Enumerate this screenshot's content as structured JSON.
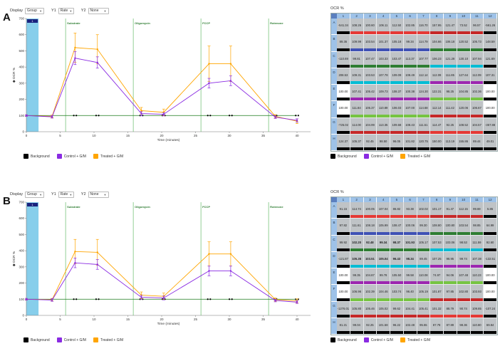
{
  "colors": {
    "background": "#000000",
    "control": "#8a2be2",
    "treated": "#ffa500",
    "baseline_band": "#87ceeb",
    "injection_line": "#4caf50",
    "injection_text": "#2e7d32",
    "zero_line": "#1a7a1a",
    "well_gray": "#bfc3c6",
    "well_white": "#ffffff",
    "group_palette": [
      "#000000",
      "#e53935",
      "#3f51b5",
      "#2e7d32",
      "#00bcd4",
      "#9c27b0",
      "#76c442",
      "#c62828"
    ]
  },
  "panels": [
    {
      "label": "A",
      "toolbar": {
        "display_label": "Display",
        "display_value": "Group",
        "y1_label": "Y1",
        "y1_value": "Rate",
        "y2_label": "Y2",
        "y2_value": "None"
      },
      "chart_data": {
        "type": "line",
        "xlabel": "Time (minutes)",
        "ylabel": "OCR %",
        "xlim": [
          0,
          42
        ],
        "ylim": [
          0,
          700
        ],
        "xticks": [
          0,
          5,
          10,
          15,
          20,
          25,
          30,
          35,
          40
        ],
        "yticks": [
          0,
          100,
          200,
          300,
          400,
          500,
          600,
          700
        ],
        "baseline_band": {
          "x_start": 0,
          "x_end": 1.8,
          "label": "1"
        },
        "injections": [
          {
            "label": "Substrate",
            "x": 5.8
          },
          {
            "label": "Oligomycin",
            "x": 15.8
          },
          {
            "label": "FCCP",
            "x": 25.8
          },
          {
            "label": "Rotenone",
            "x": 35.8
          }
        ],
        "x": [
          0,
          3.8,
          7.2,
          10.5,
          17.0,
          20.3,
          27.0,
          30.2,
          36.8,
          40.0
        ],
        "background_points": [
          7.2,
          10.5,
          17.0,
          20.3,
          27.0,
          30.2,
          36.8,
          40.0
        ],
        "series": [
          {
            "name": "Background",
            "values": [
              100,
              100,
              100,
              100,
              100,
              100,
              100,
              100,
              100,
              100
            ],
            "errors": [
              0,
              0,
              0,
              0,
              0,
              0,
              0,
              0,
              0,
              0
            ]
          },
          {
            "name": "Control + G/M",
            "values": [
              100,
              92,
              455,
              428,
              112,
              108,
              300,
              315,
              90,
              70
            ],
            "errors": [
              5,
              8,
              40,
              35,
              12,
              10,
              30,
              30,
              8,
              10
            ]
          },
          {
            "name": "Treated + G/M",
            "values": [
              100,
              95,
              520,
              510,
              130,
              120,
              420,
              420,
              95,
              65
            ],
            "errors": [
              5,
              8,
              90,
              90,
              20,
              20,
              110,
              110,
              10,
              15
            ]
          }
        ]
      },
      "plate": {
        "title": "OCR %",
        "columns": [
          "1",
          "2",
          "3",
          "4",
          "5",
          "6",
          "7",
          "8",
          "9",
          "10",
          "11",
          "12"
        ],
        "rows": [
          "A",
          "B",
          "C",
          "D",
          "E",
          "F",
          "G",
          "H"
        ],
        "values": [
          [
            "-541.34",
            "108.26",
            "100.60",
            "106.11",
            "112.50",
            "102.85",
            "116.70",
            "157.95",
            "121.47",
            "73.52",
            "96.57",
            "-561.26"
          ],
          [
            "89.36",
            "109.99",
            "103.54",
            "101.37",
            "105.18",
            "99.34",
            "114.79",
            "104.66",
            "106.18",
            "120.52",
            "105.73",
            "148.59"
          ],
          [
            "-110.69",
            "99.81",
            "107.47",
            "103.33",
            "103.47",
            "113.37",
            "107.77",
            "106.23",
            "121.28",
            "130.10",
            "107.94",
            "121.69"
          ],
          [
            "208.53",
            "109.31",
            "103.53",
            "107.78",
            "109.09",
            "108.49",
            "112.14",
            "112.09",
            "111.85",
            "127.64",
            "112.09",
            "107.31"
          ],
          [
            "100.00",
            "107.41",
            "105.42",
            "109.73",
            "108.37",
            "100.38",
            "124.30",
            "122.31",
            "98.25",
            "104.85",
            "102.36",
            "100.00"
          ],
          [
            "100.00",
            "111.84",
            "105.37",
            "110.89",
            "106.03",
            "107.00",
            "114.68",
            "112.14",
            "111.42",
            "120.06",
            "106.67",
            "100.00"
          ],
          [
            "-725.02",
            "114.00",
            "104.99",
            "113.35",
            "109.68",
            "108.43",
            "111.51",
            "114.47",
            "92.25",
            "108.52",
            "104.57",
            "-357.88"
          ],
          [
            "124.37",
            "105.37",
            "92.45",
            "98.50",
            "96.05",
            "101.82",
            "120.75",
            "150.00",
            "113.19",
            "155.86",
            "89.44",
            "49.01"
          ]
        ],
        "bold": [],
        "white": [
          [
            4,
            0
          ],
          [
            4,
            11
          ],
          [
            5,
            0
          ],
          [
            5,
            11
          ]
        ],
        "bar_groups": [
          [
            0,
            1,
            1,
            1,
            1,
            1,
            1,
            7,
            7,
            7,
            7,
            0
          ],
          [
            0,
            2,
            2,
            2,
            2,
            2,
            2,
            3,
            3,
            3,
            3,
            0
          ],
          [
            0,
            3,
            3,
            3,
            3,
            3,
            3,
            4,
            4,
            4,
            4,
            0
          ],
          [
            0,
            4,
            4,
            4,
            4,
            4,
            4,
            5,
            5,
            5,
            5,
            0
          ],
          [
            0,
            5,
            5,
            5,
            5,
            5,
            5,
            6,
            6,
            6,
            6,
            0
          ],
          [
            0,
            6,
            6,
            6,
            6,
            6,
            6,
            7,
            7,
            7,
            7,
            0
          ],
          [
            0,
            7,
            7,
            7,
            7,
            7,
            7,
            1,
            1,
            1,
            1,
            0
          ],
          [
            0,
            0,
            0,
            0,
            0,
            0,
            0,
            0,
            0,
            0,
            0,
            0
          ]
        ]
      },
      "legend": [
        {
          "name": "Background",
          "color": "#000000"
        },
        {
          "name": "Control + G/M",
          "color": "#8a2be2"
        },
        {
          "name": "Treated + G/M",
          "color": "#ffa500"
        }
      ]
    },
    {
      "label": "B",
      "toolbar": {
        "display_label": "Display",
        "display_value": "Group",
        "y1_label": "Y1",
        "y1_value": "Rate",
        "y2_label": "Y2",
        "y2_value": "None"
      },
      "chart_data": {
        "type": "line",
        "xlabel": "Time (minutes)",
        "ylabel": "OCR %",
        "xlim": [
          0,
          42
        ],
        "ylim": [
          0,
          700
        ],
        "xticks": [
          0,
          5,
          10,
          15,
          20,
          25,
          30,
          35,
          40
        ],
        "yticks": [
          0,
          100,
          200,
          300,
          400,
          500,
          600,
          700
        ],
        "baseline_band": {
          "x_start": 0,
          "x_end": 1.8,
          "label": "1"
        },
        "injections": [
          {
            "label": "Substrate",
            "x": 5.8
          },
          {
            "label": "Oligomycin",
            "x": 15.8
          },
          {
            "label": "FCCP",
            "x": 25.8
          },
          {
            "label": "Rotenone",
            "x": 35.8
          }
        ],
        "x": [
          0,
          3.8,
          7.2,
          10.5,
          17.0,
          20.3,
          27.0,
          30.2,
          36.8,
          40.0
        ],
        "background_points": [
          7.2,
          10.5,
          17.0,
          20.3,
          27.0,
          30.2,
          36.8,
          40.0
        ],
        "series": [
          {
            "name": "Background",
            "values": [
              100,
              100,
              100,
              100,
              100,
              100,
              100,
              100,
              100,
              100
            ],
            "errors": [
              0,
              0,
              0,
              0,
              0,
              0,
              0,
              0,
              0,
              0
            ]
          },
          {
            "name": "Control + G/M",
            "values": [
              100,
              95,
              325,
              315,
              112,
              108,
              275,
              275,
              92,
              82
            ],
            "errors": [
              5,
              8,
              30,
              30,
              12,
              12,
              30,
              30,
              8,
              8
            ]
          },
          {
            "name": "Treated + G/M",
            "values": [
              100,
              97,
              395,
              390,
              125,
              118,
              380,
              380,
              98,
              90
            ],
            "errors": [
              5,
              8,
              75,
              80,
              20,
              20,
              75,
              75,
              10,
              12
            ]
          }
        ]
      },
      "plate": {
        "title": "OCR %",
        "columns": [
          "1",
          "2",
          "3",
          "4",
          "5",
          "6",
          "7",
          "8",
          "9",
          "10",
          "11",
          "12"
        ],
        "rows": [
          "A",
          "B",
          "C",
          "D",
          "E",
          "F",
          "G",
          "H"
        ],
        "values": [
          [
            "91.15",
            "114.74",
            "100.05",
            "107.04",
            "86.82",
            "93.38",
            "102.02",
            "101.17",
            "91.47",
            "112.15",
            "99.69",
            "5.85"
          ],
          [
            "97.82",
            "111.61",
            "108.18",
            "105.99",
            "108.47",
            "100.06",
            "99.30",
            "108.80",
            "100.80",
            "103.54",
            "98.85",
            "64.99"
          ],
          [
            "99.92",
            "102.20",
            "92.48",
            "99.34",
            "98.37",
            "101.93",
            "105.17",
            "107.53",
            "103.06",
            "98.53",
            "111.59",
            "92.60"
          ],
          [
            "-121.87",
            "105.35",
            "103.51",
            "105.04",
            "96.43",
            "98.34",
            "89.45",
            "107.25",
            "98.95",
            "99.74",
            "107.38",
            "-132.51"
          ],
          [
            "100.00",
            "99.35",
            "104.87",
            "99.78",
            "105.50",
            "99.58",
            "110.08",
            "74.97",
            "94.06",
            "107.48",
            "110.23",
            "100.00"
          ],
          [
            "100.00",
            "106.96",
            "102.39",
            "104.46",
            "103.74",
            "96.40",
            "105.19",
            "101.87",
            "97.85",
            "102.80",
            "103.93",
            "100.00"
          ],
          [
            "-1276.01",
            "105.80",
            "105.46",
            "105.02",
            "99.62",
            "104.41",
            "105.41",
            "101.32",
            "88.79",
            "90.74",
            "109.85",
            "-107.24"
          ],
          [
            "81.21",
            "99.04",
            "92.25",
            "101.58",
            "96.22",
            "102.48",
            "95.55",
            "87.78",
            "87.89",
            "98.36",
            "110.80",
            "69.84"
          ]
        ],
        "bold": [
          [
            2,
            1
          ],
          [
            2,
            2
          ],
          [
            2,
            3
          ],
          [
            2,
            4
          ],
          [
            2,
            5
          ],
          [
            3,
            1
          ],
          [
            3,
            2
          ],
          [
            3,
            3
          ],
          [
            3,
            4
          ],
          [
            3,
            5
          ]
        ],
        "white": [
          [
            4,
            0
          ],
          [
            4,
            11
          ],
          [
            5,
            0
          ],
          [
            5,
            11
          ]
        ],
        "bar_groups": [
          [
            0,
            1,
            1,
            1,
            1,
            1,
            1,
            7,
            7,
            7,
            7,
            0
          ],
          [
            0,
            2,
            2,
            2,
            2,
            2,
            2,
            3,
            3,
            3,
            3,
            0
          ],
          [
            0,
            3,
            3,
            3,
            3,
            3,
            3,
            4,
            4,
            4,
            4,
            0
          ],
          [
            0,
            4,
            4,
            4,
            4,
            4,
            4,
            5,
            5,
            5,
            5,
            0
          ],
          [
            0,
            5,
            5,
            5,
            5,
            5,
            5,
            6,
            6,
            6,
            6,
            0
          ],
          [
            0,
            6,
            6,
            6,
            6,
            6,
            6,
            7,
            7,
            7,
            7,
            0
          ],
          [
            0,
            7,
            7,
            7,
            7,
            7,
            7,
            1,
            1,
            1,
            1,
            0
          ],
          [
            0,
            0,
            0,
            0,
            0,
            0,
            0,
            0,
            0,
            0,
            0,
            0
          ]
        ]
      },
      "legend": [
        {
          "name": "Background",
          "color": "#000000"
        },
        {
          "name": "Control + G/M",
          "color": "#8a2be2"
        },
        {
          "name": "Treated + G/M",
          "color": "#ffa500"
        }
      ]
    }
  ]
}
